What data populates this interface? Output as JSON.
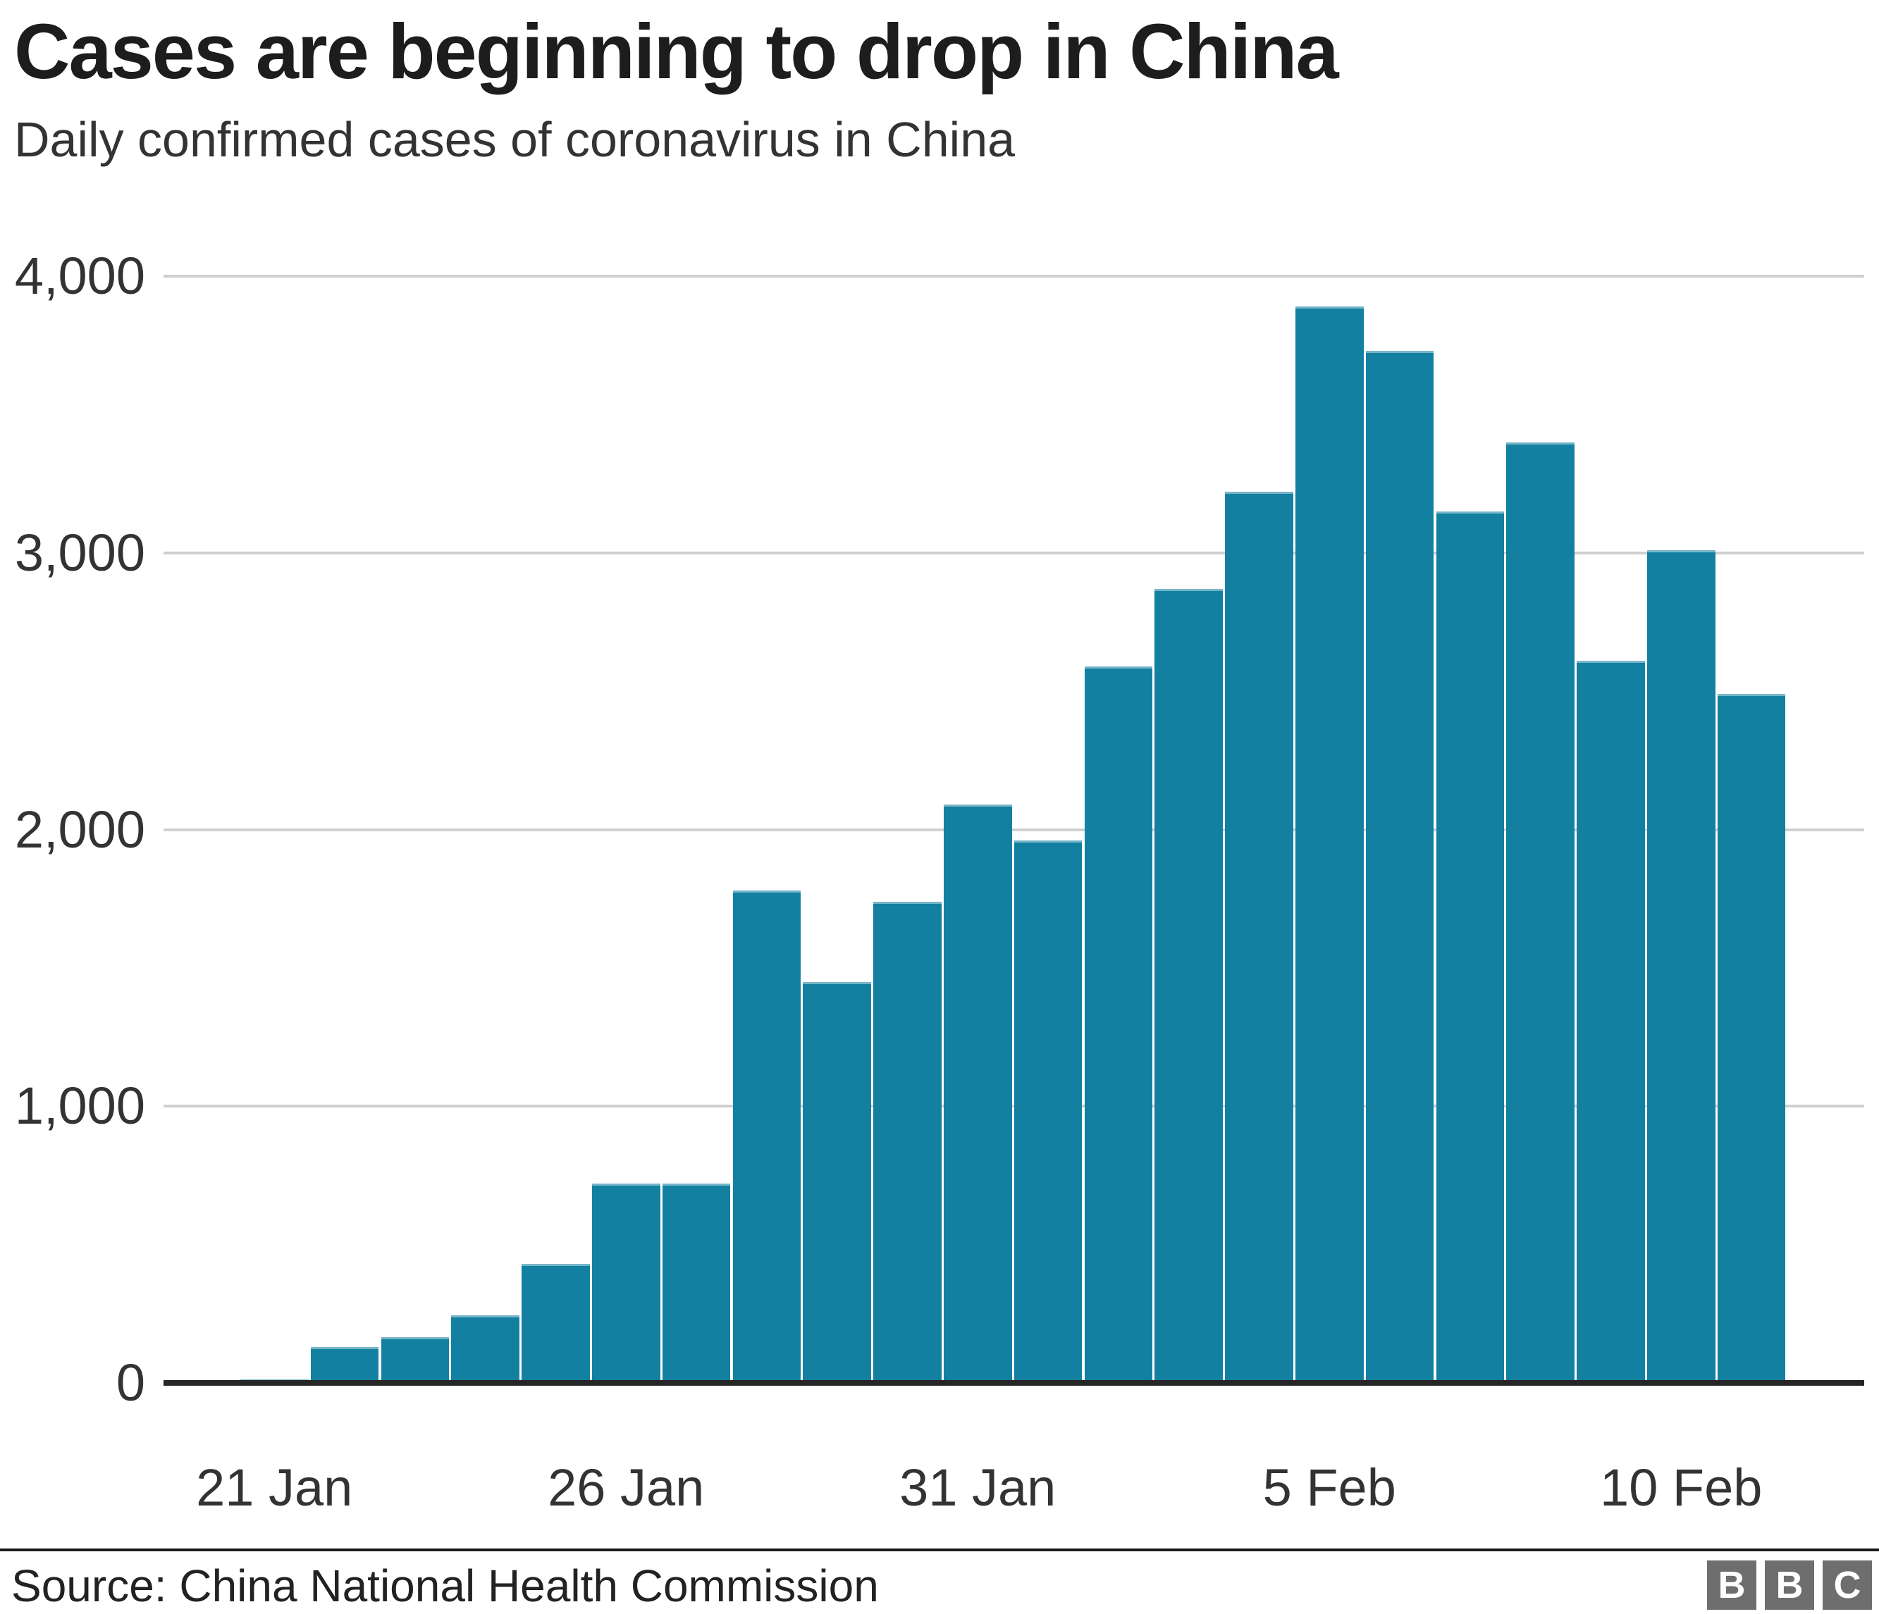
{
  "header": {
    "title": "Cases are beginning to drop in China",
    "subtitle": "Daily confirmed cases of coronavirus in China"
  },
  "footer": {
    "source": "Source: China National Health Commission",
    "logo_letters": [
      "B",
      "B",
      "C"
    ]
  },
  "colors": {
    "bar": "#1380A1",
    "grid": "#cfcfcf",
    "axis": "#262626",
    "divider": "#1a1a1a",
    "title": "#1d1d1d",
    "text": "#333333",
    "logo_bg": "#6e6e6e"
  },
  "chart_data": {
    "type": "bar",
    "title": "Cases are beginning to drop in China",
    "subtitle": "Daily confirmed cases of coronavirus in China",
    "xlabel": "",
    "ylabel": "",
    "ylim": [
      0,
      4000
    ],
    "grid": "horizontal",
    "categories": [
      "21 Jan",
      "22 Jan",
      "23 Jan",
      "24 Jan",
      "25 Jan",
      "26 Jan",
      "27 Jan",
      "28 Jan",
      "29 Jan",
      "30 Jan",
      "31 Jan",
      "1 Feb",
      "2 Feb",
      "3 Feb",
      "4 Feb",
      "5 Feb",
      "6 Feb",
      "7 Feb",
      "8 Feb",
      "9 Feb",
      "10 Feb",
      "11 Feb"
    ],
    "values": [
      13,
      130,
      165,
      245,
      430,
      720,
      720,
      1780,
      1450,
      1740,
      2090,
      1960,
      2590,
      2870,
      3220,
      3890,
      3730,
      3150,
      3400,
      2610,
      3010,
      2490
    ],
    "y_ticks": [
      0,
      1000,
      2000,
      3000,
      4000
    ],
    "y_tick_labels": [
      "0",
      "1,000",
      "2,000",
      "3,000",
      "4,000"
    ],
    "x_tick_indices": [
      0,
      5,
      10,
      15,
      20
    ],
    "x_tick_labels": [
      "21 Jan",
      "26 Jan",
      "31 Jan",
      "5 Feb",
      "10 Feb"
    ]
  }
}
